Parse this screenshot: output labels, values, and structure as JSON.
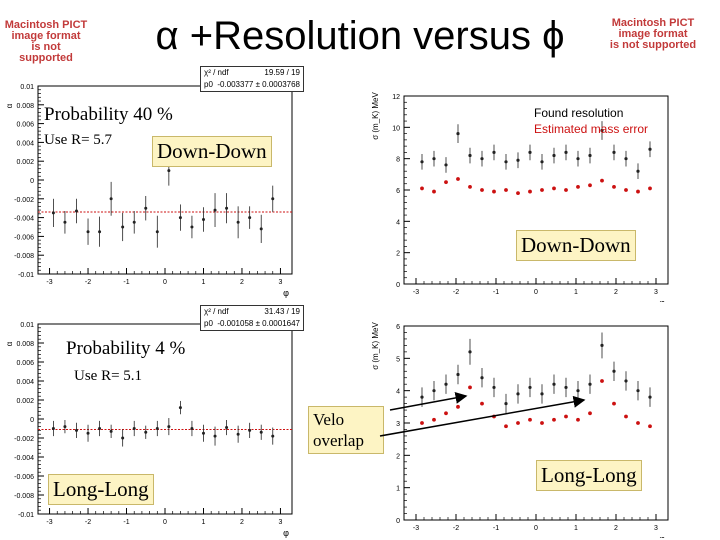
{
  "slide": {
    "title": "α +Resolution versus ϕ",
    "pict_left": [
      "Macintosh PICT",
      "image format",
      "is not supported"
    ],
    "pict_right": [
      "Macintosh PICT",
      "image format",
      "is not supported"
    ]
  },
  "annotations": {
    "prob_top": "Probability 40 %",
    "use_top": "Use R= 5.7",
    "dd_top_left": "Down-Down",
    "dd_right": "Down-Down",
    "prob_bottom": "Probability 4 %",
    "use_bottom": "Use R= 5.1",
    "velo": "Velo overlap",
    "ll_left": "Long-Long",
    "ll_right": "Long-Long",
    "legend_found": "Found resolution",
    "legend_est": "Estimated mass error",
    "fit_top": {
      "chi_label": "χ² / ndf",
      "chi_value": "19.59 / 19",
      "p0_label": "p0",
      "p0_value": "-0.003377 ± 0.0003768"
    },
    "fit_bottom": {
      "chi_label": "χ² / ndf",
      "chi_value": "31.43 / 19",
      "p0_label": "p0",
      "p0_value": "-0.001058 ± 0.0001647"
    },
    "xlabel": "φ",
    "ylabel_left": "α",
    "ylabel_right": "σ (m_K) MeV"
  },
  "colors": {
    "legend_red": "#cc1111",
    "marker": "#222222",
    "fitline": "#cc1111",
    "box_bg": "#fdf4c4",
    "pict": "#c23a3a"
  },
  "chart_data": [
    {
      "id": "top-left",
      "type": "scatter",
      "title": "",
      "xlabel": "φ",
      "ylabel": "α",
      "xlim": [
        -3.3,
        3.3
      ],
      "ylim": [
        -0.01,
        0.01
      ],
      "xticks": [
        -3,
        -2,
        -1,
        0,
        1,
        2,
        3
      ],
      "yticks": [
        0.01,
        0.008,
        0.006,
        0.004,
        0.002,
        0,
        -0.002,
        -0.004,
        -0.006,
        -0.008,
        -0.01
      ],
      "ytick_labels": [
        "0.01",
        "0.008",
        "0.006",
        "0.004",
        "0.002",
        "0",
        "-0.002",
        "-0.004",
        "-0.006",
        "-0.008",
        "-0.01"
      ],
      "fit": -0.0034,
      "x": [
        -2.9,
        -2.6,
        -2.3,
        -2.0,
        -1.7,
        -1.4,
        -1.1,
        -0.8,
        -0.5,
        -0.2,
        0.1,
        0.4,
        0.7,
        1.0,
        1.3,
        1.6,
        1.9,
        2.2,
        2.5,
        2.8
      ],
      "y": [
        -0.0035,
        -0.0045,
        -0.0033,
        -0.0055,
        -0.0055,
        -0.002,
        -0.005,
        -0.0045,
        -0.003,
        -0.0055,
        0.001,
        -0.004,
        -0.005,
        -0.0042,
        -0.0032,
        -0.003,
        -0.0045,
        -0.004,
        -0.0052,
        -0.002
      ],
      "err": [
        0.0015,
        0.0012,
        0.0013,
        0.0014,
        0.0016,
        0.0018,
        0.0015,
        0.0012,
        0.0013,
        0.0017,
        0.0016,
        0.0014,
        0.0012,
        0.0013,
        0.0018,
        0.0016,
        0.0017,
        0.0012,
        0.0015,
        0.0014
      ]
    },
    {
      "id": "top-right",
      "type": "scatter",
      "xlabel": "φ",
      "ylabel": "σ (m_K) MeV",
      "xlim": [
        -3.3,
        3.3
      ],
      "ylim": [
        0,
        12
      ],
      "xticks": [
        -3,
        -2,
        -1,
        0,
        1,
        2,
        3
      ],
      "yticks": [
        0,
        2,
        4,
        6,
        8,
        10,
        12
      ],
      "ytick_labels": [
        "0",
        "2",
        "4",
        "6",
        "8",
        "10",
        "12"
      ],
      "series": [
        {
          "name": "Found resolution",
          "x": [
            -2.85,
            -2.55,
            -2.25,
            -1.95,
            -1.65,
            -1.35,
            -1.05,
            -0.75,
            -0.45,
            -0.15,
            0.15,
            0.45,
            0.75,
            1.05,
            1.35,
            1.65,
            1.95,
            2.25,
            2.55,
            2.85
          ],
          "y": [
            7.8,
            8.0,
            7.6,
            9.6,
            8.2,
            8.0,
            8.4,
            7.8,
            7.9,
            8.4,
            7.8,
            8.2,
            8.4,
            8.0,
            8.2,
            9.8,
            8.4,
            8.0,
            7.2,
            8.6
          ],
          "err": [
            0.5,
            0.5,
            0.5,
            0.6,
            0.5,
            0.5,
            0.5,
            0.5,
            0.5,
            0.5,
            0.5,
            0.5,
            0.5,
            0.5,
            0.5,
            0.6,
            0.5,
            0.5,
            0.5,
            0.5
          ]
        },
        {
          "name": "Estimated mass error",
          "x": [
            -2.85,
            -2.55,
            -2.25,
            -1.95,
            -1.65,
            -1.35,
            -1.05,
            -0.75,
            -0.45,
            -0.15,
            0.15,
            0.45,
            0.75,
            1.05,
            1.35,
            1.65,
            1.95,
            2.25,
            2.55,
            2.85
          ],
          "y": [
            6.1,
            5.9,
            6.5,
            6.7,
            6.2,
            6.0,
            5.9,
            6.0,
            5.8,
            5.9,
            6.0,
            6.1,
            6.0,
            6.2,
            6.3,
            6.6,
            6.2,
            6.0,
            5.9,
            6.1
          ]
        }
      ]
    },
    {
      "id": "bottom-left",
      "type": "scatter",
      "xlabel": "φ",
      "ylabel": "α",
      "xlim": [
        -3.3,
        3.3
      ],
      "ylim": [
        -0.01,
        0.01
      ],
      "xticks": [
        -3,
        -2,
        -1,
        0,
        1,
        2,
        3
      ],
      "yticks": [
        0.01,
        0.008,
        0.006,
        0.004,
        0.002,
        0,
        -0.002,
        -0.004,
        -0.006,
        -0.008,
        -0.01
      ],
      "ytick_labels": [
        "0.01",
        "0.008",
        "0.006",
        "0.004",
        "0.002",
        "0",
        "-0.002",
        "-0.004",
        "-0.006",
        "-0.008",
        "-0.01"
      ],
      "fit": -0.0011,
      "x": [
        -2.9,
        -2.6,
        -2.3,
        -2.0,
        -1.7,
        -1.4,
        -1.1,
        -0.8,
        -0.5,
        -0.2,
        0.1,
        0.4,
        0.7,
        1.0,
        1.3,
        1.6,
        1.9,
        2.2,
        2.5,
        2.8
      ],
      "y": [
        -0.001,
        -0.0008,
        -0.0012,
        -0.0015,
        -0.001,
        -0.0013,
        -0.002,
        -0.001,
        -0.0014,
        -0.001,
        -0.0008,
        0.0012,
        -0.001,
        -0.0015,
        -0.0018,
        -0.0009,
        -0.0016,
        -0.0012,
        -0.0014,
        -0.0018
      ],
      "err": [
        0.0008,
        0.0007,
        0.0008,
        0.0009,
        0.0008,
        0.0007,
        0.0009,
        0.0008,
        0.0007,
        0.0008,
        0.0009,
        0.0007,
        0.0008,
        0.0009,
        0.001,
        0.0008,
        0.0009,
        0.0008,
        0.0008,
        0.0009
      ]
    },
    {
      "id": "bottom-right",
      "type": "scatter",
      "xlabel": "φ",
      "ylabel": "σ (m_K) MeV",
      "xlim": [
        -3.3,
        3.3
      ],
      "ylim": [
        0,
        6
      ],
      "xticks": [
        -3,
        -2,
        -1,
        0,
        1,
        2,
        3
      ],
      "yticks": [
        0,
        1,
        2,
        3,
        4,
        5,
        6
      ],
      "ytick_labels": [
        "0",
        "1",
        "2",
        "3",
        "4",
        "5",
        "6"
      ],
      "series": [
        {
          "name": "Found resolution",
          "x": [
            -2.85,
            -2.55,
            -2.25,
            -1.95,
            -1.65,
            -1.35,
            -1.05,
            -0.75,
            -0.45,
            -0.15,
            0.15,
            0.45,
            0.75,
            1.05,
            1.35,
            1.65,
            1.95,
            2.25,
            2.55,
            2.85
          ],
          "y": [
            3.8,
            4.0,
            4.2,
            4.5,
            5.2,
            4.4,
            4.1,
            3.6,
            3.9,
            4.1,
            3.9,
            4.2,
            4.1,
            4.0,
            4.2,
            5.4,
            4.6,
            4.3,
            4.0,
            3.8
          ],
          "err": [
            0.3,
            0.3,
            0.3,
            0.3,
            0.4,
            0.3,
            0.3,
            0.3,
            0.3,
            0.3,
            0.3,
            0.3,
            0.3,
            0.3,
            0.3,
            0.4,
            0.3,
            0.3,
            0.3,
            0.3
          ]
        },
        {
          "name": "Estimated mass error",
          "x": [
            -2.85,
            -2.55,
            -2.25,
            -1.95,
            -1.65,
            -1.35,
            -1.05,
            -0.75,
            -0.45,
            -0.15,
            0.15,
            0.45,
            0.75,
            1.05,
            1.35,
            1.65,
            1.95,
            2.25,
            2.55,
            2.85
          ],
          "y": [
            3.0,
            3.1,
            3.3,
            3.5,
            4.1,
            3.6,
            3.2,
            2.9,
            3.0,
            3.1,
            3.0,
            3.1,
            3.2,
            3.1,
            3.3,
            4.3,
            3.6,
            3.2,
            3.0,
            2.9
          ]
        }
      ]
    }
  ]
}
